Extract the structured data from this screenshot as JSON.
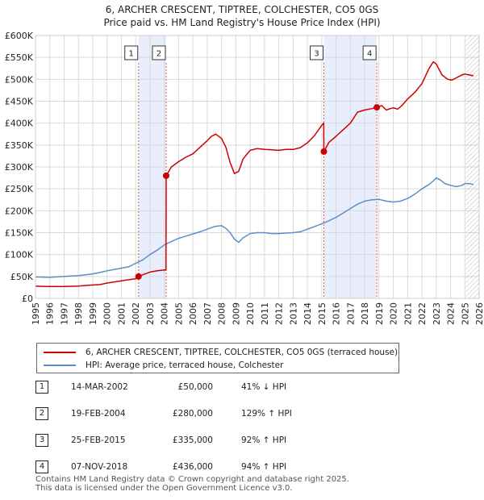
{
  "title": {
    "line1": "6, ARCHER CRESCENT, TIPTREE, COLCHESTER, CO5 0GS",
    "line2": "Price paid vs. HM Land Registry's House Price Index (HPI)"
  },
  "colors": {
    "property": "#cc0000",
    "hpi": "#5b8ec9",
    "band": "#e8eefb",
    "marker_line": "#e06060",
    "grid": "#d9d9d9",
    "projection_hatch": "#999999"
  },
  "chart_data": {
    "type": "line",
    "title": "Price paid vs. HM Land Registry's House Price Index (HPI)",
    "xlabel": "",
    "ylabel": "",
    "xlim": [
      1995,
      2026
    ],
    "ylim": [
      0,
      600000
    ],
    "y_ticks": [
      0,
      50000,
      100000,
      150000,
      200000,
      250000,
      300000,
      350000,
      400000,
      450000,
      500000,
      550000,
      600000
    ],
    "y_tick_labels": [
      "£0",
      "£50K",
      "£100K",
      "£150K",
      "£200K",
      "£250K",
      "£300K",
      "£350K",
      "£400K",
      "£450K",
      "£500K",
      "£550K",
      "£600K"
    ],
    "x_ticks": [
      1995,
      1996,
      1997,
      1998,
      1999,
      2000,
      2001,
      2002,
      2003,
      2004,
      2005,
      2006,
      2007,
      2008,
      2009,
      2010,
      2011,
      2012,
      2013,
      2014,
      2015,
      2016,
      2017,
      2018,
      2019,
      2020,
      2021,
      2022,
      2023,
      2024,
      2025,
      2026
    ],
    "x_tick_labels": [
      "1995",
      "1996",
      "1997",
      "1998",
      "1999",
      "2000",
      "2001",
      "2002",
      "2003",
      "2004",
      "2005",
      "2006",
      "2007",
      "2008",
      "2009",
      "2010",
      "2011",
      "2012",
      "2013",
      "2014",
      "2015",
      "2016",
      "2017",
      "2018",
      "2019",
      "2020",
      "2021",
      "2022",
      "2023",
      "2024",
      "2025",
      "2026"
    ],
    "grid": true,
    "shaded_periods": [
      [
        2002.2,
        2004.13
      ],
      [
        2015.15,
        2018.85
      ]
    ],
    "projection_start": 2025.0,
    "series": [
      {
        "name": "6, ARCHER CRESCENT, TIPTREE, COLCHESTER, CO5 0GS (terraced house)",
        "color": "#cc0000",
        "x": [
          1995.0,
          1995.5,
          1996.0,
          1997.0,
          1998.0,
          1998.5,
          1999.0,
          1999.5,
          2000.0,
          2000.5,
          2001.0,
          2001.5,
          2002.0,
          2002.2,
          2002.5,
          2003.0,
          2003.5,
          2004.0,
          2004.12,
          2004.13,
          2004.5,
          2005.0,
          2005.5,
          2006.0,
          2006.5,
          2007.0,
          2007.3,
          2007.6,
          2008.0,
          2008.3,
          2008.6,
          2008.9,
          2009.2,
          2009.5,
          2010.0,
          2010.5,
          2011.0,
          2011.5,
          2012.0,
          2012.5,
          2013.0,
          2013.5,
          2014.0,
          2014.5,
          2015.0,
          2015.14,
          2015.15,
          2015.5,
          2016.0,
          2016.5,
          2017.0,
          2017.5,
          2018.0,
          2018.5,
          2018.84,
          2018.85,
          2019.2,
          2019.5,
          2019.8,
          2020.0,
          2020.3,
          2020.6,
          2021.0,
          2021.5,
          2022.0,
          2022.5,
          2022.8,
          2023.0,
          2023.4,
          2023.8,
          2024.1,
          2024.5,
          2024.8,
          2025.0,
          2025.3,
          2025.6
        ],
        "values": [
          28000,
          27500,
          27000,
          27000,
          28000,
          29500,
          30500,
          31500,
          35000,
          37500,
          40000,
          42500,
          45000,
          50000,
          54000,
          60000,
          63000,
          65000,
          65000,
          280000,
          300000,
          312000,
          322000,
          330000,
          345000,
          360000,
          370000,
          375000,
          365000,
          345000,
          310000,
          285000,
          290000,
          318000,
          338000,
          342000,
          340000,
          339000,
          338000,
          340000,
          340000,
          344000,
          355000,
          372000,
          395000,
          400000,
          335000,
          356000,
          370000,
          385000,
          400000,
          425000,
          430000,
          433000,
          436000,
          436000,
          440000,
          430000,
          433000,
          435000,
          432000,
          440000,
          455000,
          470000,
          490000,
          525000,
          540000,
          535000,
          510000,
          500000,
          498000,
          505000,
          510000,
          512000,
          510000,
          508000
        ]
      },
      {
        "name": "HPI: Average price, terraced house, Colchester",
        "color": "#5b8ec9",
        "x": [
          1995.0,
          1995.5,
          1996.0,
          1997.0,
          1998.0,
          1998.5,
          1999.0,
          1999.5,
          2000.0,
          2000.5,
          2001.0,
          2001.5,
          2002.0,
          2002.5,
          2003.0,
          2003.5,
          2004.0,
          2004.5,
          2005.0,
          2005.5,
          2006.0,
          2006.5,
          2007.0,
          2007.5,
          2008.0,
          2008.3,
          2008.6,
          2008.9,
          2009.2,
          2009.5,
          2010.0,
          2010.5,
          2011.0,
          2011.5,
          2012.0,
          2012.5,
          2013.0,
          2013.5,
          2014.0,
          2014.5,
          2015.0,
          2015.5,
          2016.0,
          2016.5,
          2017.0,
          2017.5,
          2018.0,
          2018.5,
          2019.0,
          2019.5,
          2020.0,
          2020.5,
          2021.0,
          2021.5,
          2022.0,
          2022.5,
          2022.8,
          2023.0,
          2023.3,
          2023.6,
          2024.0,
          2024.4,
          2024.8,
          2025.0,
          2025.3,
          2025.6
        ],
        "values": [
          49000,
          48500,
          48000,
          50000,
          52000,
          54000,
          56000,
          59000,
          63000,
          66000,
          69000,
          72000,
          80000,
          88000,
          100000,
          110000,
          122000,
          130000,
          137000,
          142000,
          147000,
          152000,
          158000,
          164000,
          166000,
          160000,
          150000,
          135000,
          128000,
          138000,
          148000,
          150000,
          150000,
          148000,
          148000,
          149000,
          150000,
          152000,
          158000,
          164000,
          170000,
          177000,
          185000,
          195000,
          205000,
          215000,
          222000,
          225000,
          226000,
          222000,
          220000,
          222000,
          228000,
          238000,
          250000,
          260000,
          268000,
          275000,
          270000,
          262000,
          258000,
          255000,
          258000,
          262000,
          262000,
          260000
        ]
      }
    ],
    "markers": [
      {
        "label": "1",
        "x": 2002.2,
        "value": 50000
      },
      {
        "label": "2",
        "x": 2004.13,
        "value": 280000
      },
      {
        "label": "3",
        "x": 2015.15,
        "value": 335000
      },
      {
        "label": "4",
        "x": 2018.85,
        "value": 436000
      }
    ],
    "legend": {
      "position": "below-chart",
      "entries": [
        "6, ARCHER CRESCENT, TIPTREE, COLCHESTER, CO5 0GS (terraced house)",
        "HPI: Average price, terraced house, Colchester"
      ]
    }
  },
  "sales": [
    {
      "num": "1",
      "date": "14-MAR-2002",
      "price": "£50,000",
      "hpi": "41% ↓ HPI"
    },
    {
      "num": "2",
      "date": "19-FEB-2004",
      "price": "£280,000",
      "hpi": "129% ↑ HPI"
    },
    {
      "num": "3",
      "date": "25-FEB-2015",
      "price": "£335,000",
      "hpi": "92% ↑ HPI"
    },
    {
      "num": "4",
      "date": "07-NOV-2018",
      "price": "£436,000",
      "hpi": "94% ↑ HPI"
    }
  ],
  "footer": {
    "line1": "Contains HM Land Registry data © Crown copyright and database right 2025.",
    "line2": "This data is licensed under the Open Government Licence v3.0."
  }
}
